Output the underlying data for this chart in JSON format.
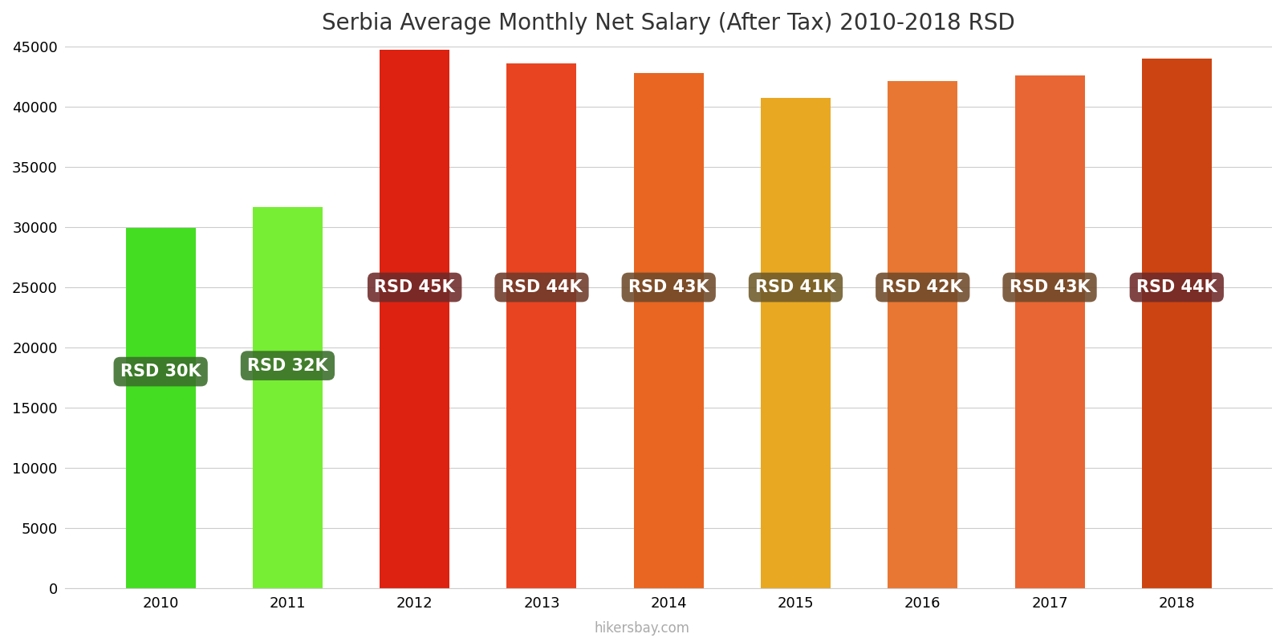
{
  "title": "Serbia Average Monthly Net Salary (After Tax) 2010-2018 RSD",
  "years": [
    2010,
    2011,
    2012,
    2013,
    2014,
    2015,
    2016,
    2017,
    2018
  ],
  "values": [
    29950,
    31650,
    44700,
    43600,
    42800,
    40700,
    42100,
    42600,
    44000
  ],
  "labels": [
    "RSD 30K",
    "RSD 32K",
    "RSD 45K",
    "RSD 44K",
    "RSD 43K",
    "RSD 41K",
    "RSD 42K",
    "RSD 43K",
    "RSD 44K"
  ],
  "label_y_positions": [
    18000,
    18500,
    25000,
    25000,
    25000,
    25000,
    25000,
    25000,
    25000
  ],
  "bar_colors": [
    "#44dd22",
    "#77ee33",
    "#dd2211",
    "#e84422",
    "#e86622",
    "#e8a822",
    "#e87733",
    "#e86633",
    "#cc4411"
  ],
  "ylim": [
    0,
    45000
  ],
  "yticks": [
    0,
    5000,
    10000,
    15000,
    20000,
    25000,
    30000,
    35000,
    40000,
    45000
  ],
  "background_color": "#ffffff",
  "label_bg_colors": [
    "#3a6e2a",
    "#3a6e2a",
    "#6e2a2a",
    "#6e3a2a",
    "#6e4a2a",
    "#6e5a2a",
    "#6e4a2a",
    "#6e4a2a",
    "#6e2a2a"
  ],
  "label_text_color": "#ffffff",
  "watermark": "hikersbay.com",
  "title_fontsize": 20,
  "label_fontsize": 15,
  "tick_fontsize": 13,
  "bar_width": 0.55
}
